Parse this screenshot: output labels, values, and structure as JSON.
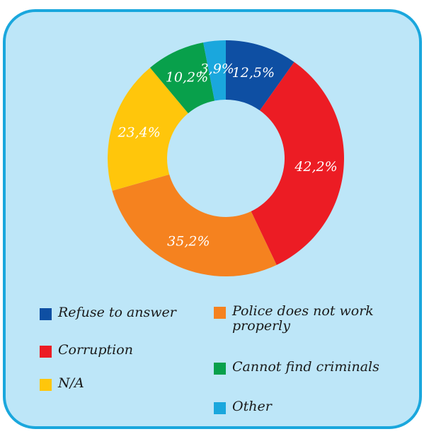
{
  "chart_data": {
    "type": "donut",
    "slices": [
      {
        "name": "Refuse to answer",
        "value": 12.5,
        "label": "12,5%",
        "color": "#0e4fa3"
      },
      {
        "name": "Corruption",
        "value": 42.2,
        "label": "42,2%",
        "color": "#ec1c24"
      },
      {
        "name": "Police does not work properly",
        "value": 35.2,
        "label": "35,2%",
        "color": "#f5821f"
      },
      {
        "name": "N/A",
        "value": 23.4,
        "label": "23,4%",
        "color": "#ffc60b"
      },
      {
        "name": "Cannot find criminals",
        "value": 10.2,
        "label": "10,2%",
        "color": "#08a04b"
      },
      {
        "name": "Other",
        "value": 3.9,
        "label": "3,9%",
        "color": "#1aa7dd"
      }
    ],
    "legend": [
      {
        "label": "Refuse to answer",
        "color": "#0e4fa3"
      },
      {
        "label": "Police does not work properly",
        "color": "#f5821f"
      },
      {
        "label": "Corruption",
        "color": "#ec1c24"
      },
      {
        "label": "Cannot find criminals",
        "color": "#08a04b"
      },
      {
        "label": "N/A",
        "color": "#ffc60b"
      },
      {
        "label": "Other",
        "color": "#1aa7dd"
      }
    ]
  },
  "colors": {
    "panel_background": "#bde6f8",
    "panel_border": "#1aa7dd"
  }
}
